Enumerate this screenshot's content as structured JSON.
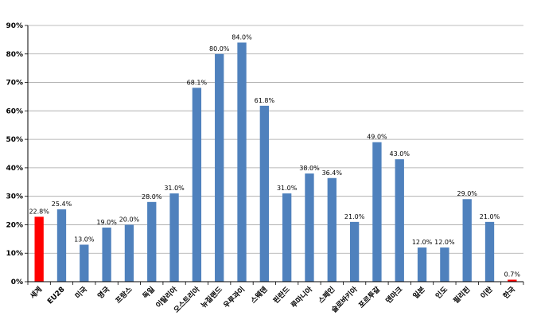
{
  "chart_data": {
    "type": "bar",
    "title": "",
    "xlabel": "",
    "ylabel": "",
    "ylim": [
      0,
      90
    ],
    "ytick_step": 10,
    "ytick_format": "percent",
    "grid": true,
    "legend": "none",
    "bar_color": "#4f81bd",
    "highlight_colors": {
      "세계": "#ff0000",
      "한국": "#ff0000"
    },
    "categories": [
      "세계",
      "EU28",
      "미국",
      "영국",
      "프랑스",
      "독일",
      "이탈리아",
      "오스트리아",
      "뉴질랜드",
      "우루과이",
      "스웨덴",
      "핀란드",
      "루마니아",
      "스페인",
      "슬로바키아",
      "포르투갈",
      "덴마크",
      "일본",
      "인도",
      "필리핀",
      "이란",
      "한국"
    ],
    "values": [
      22.8,
      25.4,
      13.0,
      19.0,
      20.0,
      28.0,
      31.0,
      68.1,
      80.0,
      84.0,
      61.8,
      31.0,
      38.0,
      36.4,
      21.0,
      49.0,
      43.0,
      12.0,
      12.0,
      29.0,
      21.0,
      0.7
    ],
    "data_labels": [
      "22.8%",
      "25.4%",
      "13.0%",
      "19.0%",
      "20.0%",
      "28.0%",
      "31.0%",
      "68.1%",
      "80.0%",
      "84.0%",
      "61.8%",
      "31.0%",
      "38.0%",
      "36.4%",
      "21.0%",
      "49.0%",
      "43.0%",
      "12.0%",
      "12.0%",
      "29.0%",
      "21.0%",
      "0.7%"
    ]
  }
}
